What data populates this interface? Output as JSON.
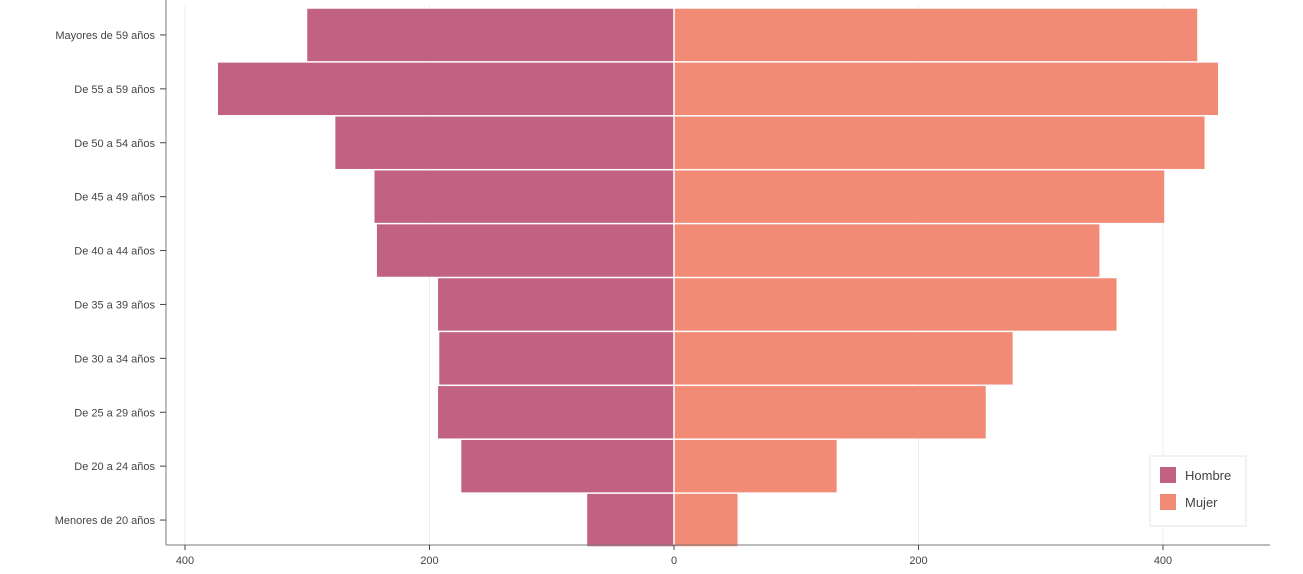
{
  "chart_data": {
    "type": "bar",
    "orientation": "horizontal",
    "subtype": "population-pyramid",
    "categories": [
      "Mayores de 59 años",
      "De 55 a 59 años",
      "De 50 a 54 años",
      "De 45 a 49 años",
      "De 40 a 44 años",
      "De 35 a 39 años",
      "De 30 a 34 años",
      "De 25 a 29 años",
      "De 20 a 24 años",
      "Menores de 20 años"
    ],
    "series": [
      {
        "name": "Hombre",
        "color": "#c26282",
        "values": [
          -300,
          -373,
          -277,
          -245,
          -243,
          -193,
          -192,
          -193,
          -174,
          -71
        ]
      },
      {
        "name": "Mujer",
        "color": "#f28b76",
        "values": [
          428,
          445,
          434,
          401,
          348,
          362,
          277,
          255,
          133,
          52
        ]
      }
    ],
    "xlim": [
      -400,
      400
    ],
    "xticks": [
      -400,
      -200,
      0,
      200,
      400
    ],
    "xtick_labels": [
      "400",
      "200",
      "0",
      "200",
      "400"
    ],
    "title": "",
    "xlabel": "",
    "ylabel": "",
    "grid": true,
    "legend_position": "bottom-right",
    "legend_labels": [
      "Hombre",
      "Mujer"
    ]
  }
}
